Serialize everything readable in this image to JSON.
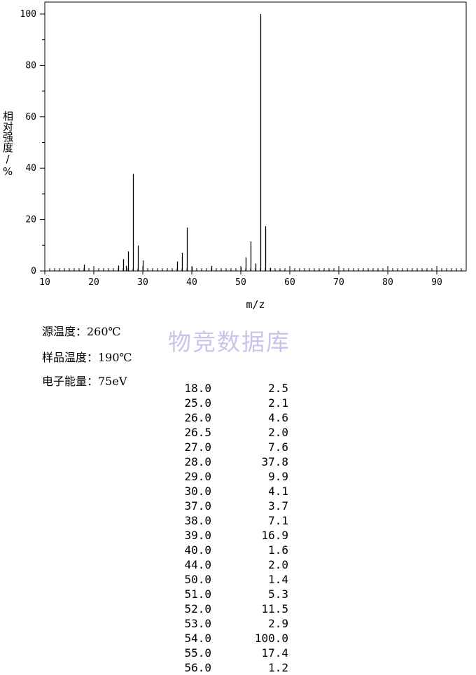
{
  "chart_data": {
    "type": "bar",
    "title": "",
    "xlabel": "m/z",
    "ylabel": "相对强度/%",
    "xlim": [
      10,
      96
    ],
    "ylim": [
      0,
      100
    ],
    "xticks": [
      10,
      20,
      30,
      40,
      50,
      60,
      70,
      80,
      90
    ],
    "yticks": [
      0,
      20,
      40,
      60,
      80,
      100
    ],
    "grid": false,
    "series": [
      {
        "x": [
          18.0,
          25.0,
          26.0,
          26.5,
          27.0,
          28.0,
          29.0,
          30.0,
          37.0,
          38.0,
          39.0,
          40.0,
          44.0,
          50.0,
          51.0,
          52.0,
          53.0,
          54.0,
          55.0,
          56.0
        ],
        "values": [
          2.5,
          2.1,
          4.6,
          2.0,
          7.6,
          37.8,
          9.9,
          4.1,
          3.7,
          7.1,
          16.9,
          1.6,
          2.0,
          1.4,
          5.3,
          11.5,
          2.9,
          100.0,
          17.4,
          1.2
        ]
      }
    ]
  },
  "conditions": {
    "source_temp": "源温度：260℃",
    "sample_temp": "样品温度：190℃",
    "electron_energy": "电子能量：75eV"
  },
  "watermark": "物竞数据库",
  "peak_table": [
    [
      "18.0",
      "2.5"
    ],
    [
      "25.0",
      "2.1"
    ],
    [
      "26.0",
      "4.6"
    ],
    [
      "26.5",
      "2.0"
    ],
    [
      "27.0",
      "7.6"
    ],
    [
      "28.0",
      "37.8"
    ],
    [
      "29.0",
      "9.9"
    ],
    [
      "30.0",
      "4.1"
    ],
    [
      "37.0",
      "3.7"
    ],
    [
      "38.0",
      "7.1"
    ],
    [
      "39.0",
      "16.9"
    ],
    [
      "40.0",
      "1.6"
    ],
    [
      "44.0",
      "2.0"
    ],
    [
      "50.0",
      "1.4"
    ],
    [
      "51.0",
      "5.3"
    ],
    [
      "52.0",
      "11.5"
    ],
    [
      "53.0",
      "2.9"
    ],
    [
      "54.0",
      "100.0"
    ],
    [
      "55.0",
      "17.4"
    ],
    [
      "56.0",
      "1.2"
    ]
  ]
}
